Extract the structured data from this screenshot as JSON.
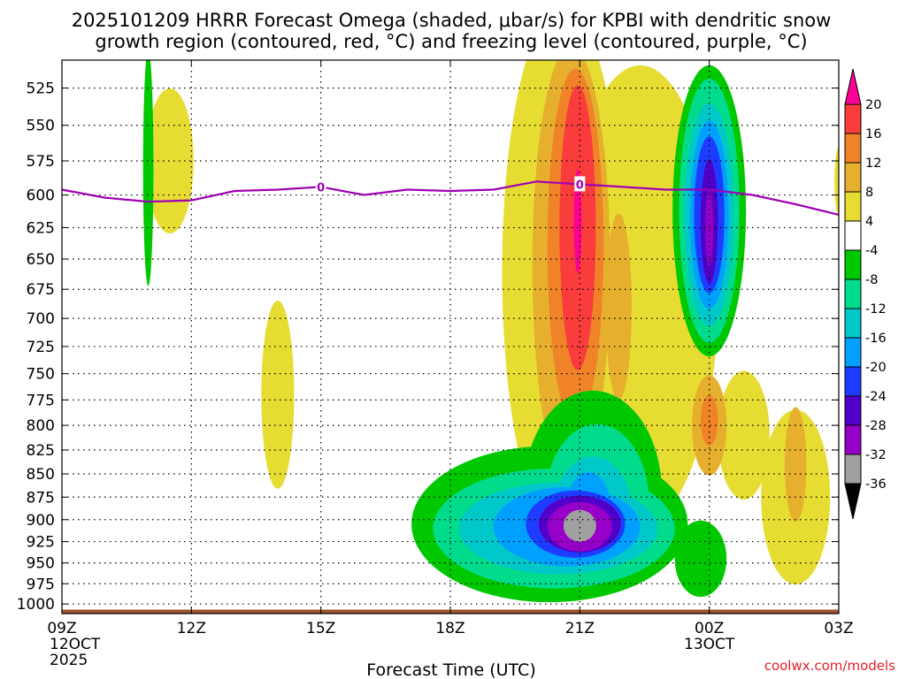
{
  "chart_data": {
    "type": "heatmap",
    "title_line1": "2025101209 HRRR Forecast Omega (shaded, μbar/s) for KPBI with dendritic snow",
    "title_line2": "growth region (contoured, red, °C) and freezing level (contoured, purple, °C)",
    "xlabel": "Forecast Time (UTC)",
    "credit": "coolwx.com/models",
    "x_ticks": [
      {
        "h": 0,
        "label": "09Z",
        "date": "12OCT",
        "year": "2025"
      },
      {
        "h": 3,
        "label": "12Z"
      },
      {
        "h": 6,
        "label": "15Z"
      },
      {
        "h": 9,
        "label": "18Z"
      },
      {
        "h": 12,
        "label": "21Z"
      },
      {
        "h": 15,
        "label": "00Z",
        "date": "13OCT"
      },
      {
        "h": 18,
        "label": "03Z"
      }
    ],
    "xlim": [
      0,
      18
    ],
    "ylim": [
      507,
      1012
    ],
    "y_ticks": [
      525,
      550,
      575,
      600,
      625,
      650,
      675,
      700,
      725,
      750,
      775,
      800,
      825,
      850,
      875,
      900,
      925,
      950,
      975,
      1000
    ],
    "colorbar": {
      "colors": [
        "#000000",
        "#a0a0a0",
        "#9600c8",
        "#5000c8",
        "#1e3cff",
        "#00a0ff",
        "#00c8c8",
        "#00dc8c",
        "#00c800",
        "#ffffff",
        "#e6dc32",
        "#e6af2d",
        "#f08228",
        "#fa3c3c",
        "#ff0096"
      ],
      "labels": [
        "-36",
        "-32",
        "-28",
        "-24",
        "-20",
        "-16",
        "-12",
        "-8",
        "-4",
        "4",
        "8",
        "12",
        "16",
        "20"
      ]
    },
    "freezing_level": {
      "label": "0",
      "color": "#a000b4",
      "points": [
        [
          0,
          596
        ],
        [
          1,
          602
        ],
        [
          2,
          605
        ],
        [
          3,
          604
        ],
        [
          4,
          597
        ],
        [
          5,
          596
        ],
        [
          6,
          594
        ],
        [
          7,
          600
        ],
        [
          8,
          596
        ],
        [
          9,
          597
        ],
        [
          10,
          596
        ],
        [
          11,
          590
        ],
        [
          12,
          592
        ],
        [
          13,
          594
        ],
        [
          14,
          596
        ],
        [
          15,
          596
        ],
        [
          16,
          600
        ],
        [
          17,
          607
        ],
        [
          18,
          615
        ]
      ]
    },
    "surface_color": "#a0522d",
    "bands": [
      {
        "level": 4,
        "color": "#e6dc32",
        "blobs": [
          {
            "cx": 2.5,
            "cy": 575,
            "rx": 0.55,
            "ry": 52
          },
          {
            "cx": 5.0,
            "cy": 770,
            "rx": 0.38,
            "ry": 90
          },
          {
            "cx": 11.6,
            "cy": 660,
            "rx": 1.4,
            "ry": 210
          },
          {
            "cx": 13.4,
            "cy": 680,
            "rx": 1.8,
            "ry": 190
          },
          {
            "cx": 15.8,
            "cy": 810,
            "rx": 0.6,
            "ry": 65
          },
          {
            "cx": 17.0,
            "cy": 875,
            "rx": 0.8,
            "ry": 95
          },
          {
            "cx": 18.0,
            "cy": 590,
            "rx": 0.1,
            "ry": 25
          }
        ]
      },
      {
        "level": 8,
        "color": "#e6af2d",
        "blobs": [
          {
            "cx": 11.8,
            "cy": 655,
            "rx": 0.9,
            "ry": 175
          },
          {
            "cx": 12.9,
            "cy": 690,
            "rx": 0.3,
            "ry": 80
          },
          {
            "cx": 15.0,
            "cy": 800,
            "rx": 0.4,
            "ry": 50
          },
          {
            "cx": 17.0,
            "cy": 840,
            "rx": 0.25,
            "ry": 60
          }
        ]
      },
      {
        "level": 12,
        "color": "#f08228",
        "blobs": [
          {
            "cx": 11.9,
            "cy": 640,
            "rx": 0.65,
            "ry": 140
          },
          {
            "cx": 15.0,
            "cy": 795,
            "rx": 0.2,
            "ry": 25
          }
        ]
      },
      {
        "level": 16,
        "color": "#fa3c3c",
        "blobs": [
          {
            "cx": 11.95,
            "cy": 625,
            "rx": 0.42,
            "ry": 110
          }
        ]
      },
      {
        "level": 20,
        "color": "#ff0096",
        "blobs": [
          {
            "cx": 11.95,
            "cy": 620,
            "rx": 0.09,
            "ry": 40
          }
        ]
      },
      {
        "level": -4,
        "color": "#00c800",
        "blobs": [
          {
            "cx": 2.0,
            "cy": 580,
            "rx": 0.12,
            "ry": 85
          },
          {
            "cx": 11.3,
            "cy": 905,
            "rx": 3.2,
            "ry": 88
          },
          {
            "cx": 12.3,
            "cy": 870,
            "rx": 1.6,
            "ry": 110
          },
          {
            "cx": 14.8,
            "cy": 945,
            "rx": 0.6,
            "ry": 45
          },
          {
            "cx": 15.0,
            "cy": 612,
            "rx": 0.85,
            "ry": 110
          }
        ]
      },
      {
        "level": -8,
        "color": "#00dc8c",
        "blobs": [
          {
            "cx": 11.4,
            "cy": 910,
            "rx": 2.8,
            "ry": 68
          },
          {
            "cx": 12.4,
            "cy": 880,
            "rx": 1.2,
            "ry": 85
          },
          {
            "cx": 15.0,
            "cy": 612,
            "rx": 0.7,
            "ry": 100
          }
        ]
      },
      {
        "level": -12,
        "color": "#00c8c8",
        "blobs": [
          {
            "cx": 11.5,
            "cy": 910,
            "rx": 2.3,
            "ry": 52
          },
          {
            "cx": 12.3,
            "cy": 890,
            "rx": 0.9,
            "ry": 60
          },
          {
            "cx": 15.0,
            "cy": 615,
            "rx": 0.57,
            "ry": 85
          }
        ]
      },
      {
        "level": -16,
        "color": "#00a0ff",
        "blobs": [
          {
            "cx": 11.7,
            "cy": 908,
            "rx": 1.7,
            "ry": 45
          },
          {
            "cx": 12.2,
            "cy": 895,
            "rx": 0.55,
            "ry": 48
          },
          {
            "cx": 15.0,
            "cy": 615,
            "rx": 0.45,
            "ry": 72
          }
        ]
      },
      {
        "level": -20,
        "color": "#1e3cff",
        "blobs": [
          {
            "cx": 11.9,
            "cy": 905,
            "rx": 1.15,
            "ry": 38
          },
          {
            "cx": 15.0,
            "cy": 615,
            "rx": 0.35,
            "ry": 60
          }
        ]
      },
      {
        "level": -24,
        "color": "#5000c8",
        "blobs": [
          {
            "cx": 12.0,
            "cy": 905,
            "rx": 0.95,
            "ry": 32
          },
          {
            "cx": 15.0,
            "cy": 620,
            "rx": 0.2,
            "ry": 48
          }
        ]
      },
      {
        "level": -28,
        "color": "#9600c8",
        "blobs": [
          {
            "cx": 12.0,
            "cy": 908,
            "rx": 0.75,
            "ry": 28
          },
          {
            "cx": 15.0,
            "cy": 625,
            "rx": 0.09,
            "ry": 30
          }
        ]
      },
      {
        "level": -32,
        "color": "#a0a0a0",
        "blobs": [
          {
            "cx": 12.0,
            "cy": 907,
            "rx": 0.38,
            "ry": 18
          }
        ]
      }
    ]
  }
}
